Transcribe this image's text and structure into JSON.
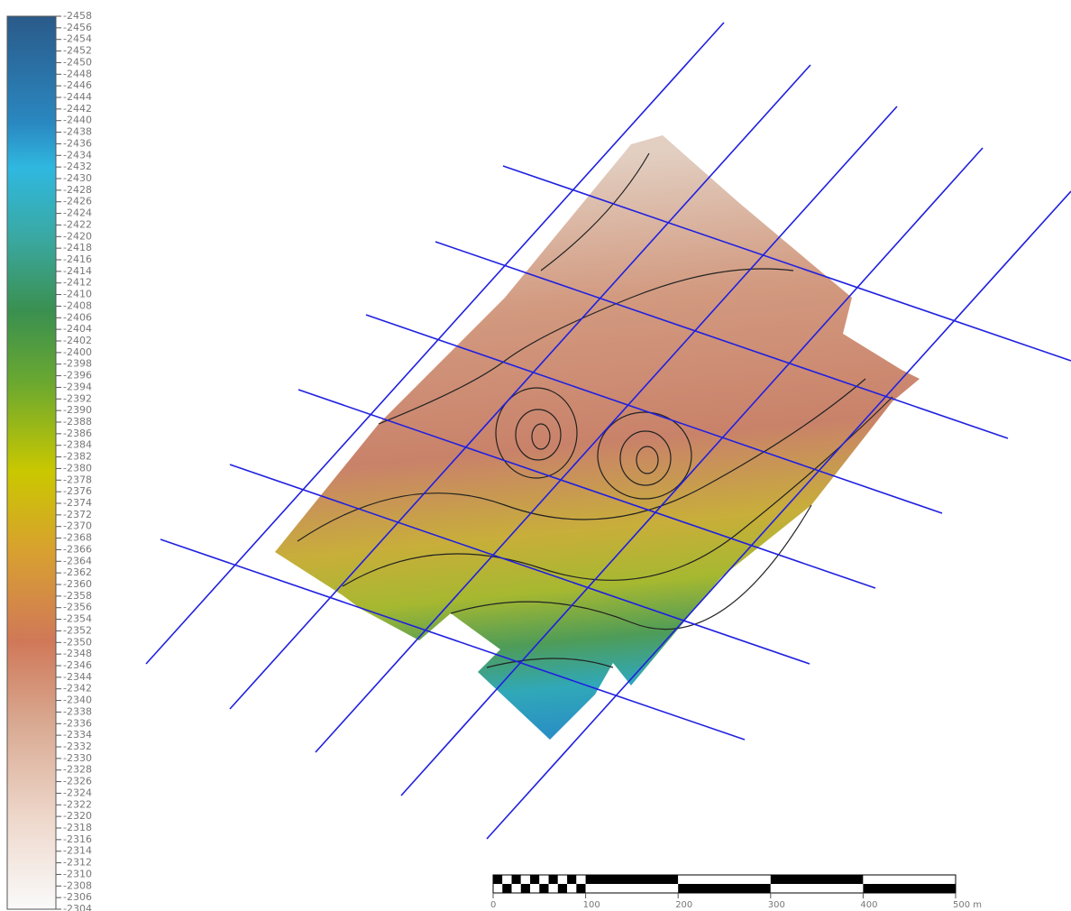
{
  "colorbar": {
    "range": [
      -2458,
      -2304
    ],
    "ticks": [
      -2458,
      -2456,
      -2454,
      -2452,
      -2450,
      -2448,
      -2446,
      -2444,
      -2442,
      -2440,
      -2438,
      -2436,
      -2434,
      -2432,
      -2430,
      -2428,
      -2426,
      -2424,
      -2422,
      -2420,
      -2418,
      -2416,
      -2414,
      -2412,
      -2410,
      -2408,
      -2406,
      -2404,
      -2402,
      -2400,
      -2398,
      -2396,
      -2394,
      -2392,
      -2390,
      -2388,
      -2386,
      -2384,
      -2382,
      -2380,
      -2378,
      -2376,
      -2374,
      -2372,
      -2370,
      -2368,
      -2366,
      -2364,
      -2362,
      -2360,
      -2358,
      -2356,
      -2354,
      -2352,
      -2350,
      -2348,
      -2346,
      -2344,
      -2342,
      -2340,
      -2338,
      -2336,
      -2334,
      -2332,
      -2330,
      -2328,
      -2326,
      -2324,
      -2322,
      -2320,
      -2318,
      -2316,
      -2314,
      -2312,
      -2310,
      -2308,
      -2306,
      -2304
    ]
  },
  "scale_bar": {
    "range": [
      0,
      500
    ],
    "ticks": [
      0,
      100,
      200,
      300,
      400,
      {
        "value": 500,
        "label": "500 m"
      }
    ]
  }
}
